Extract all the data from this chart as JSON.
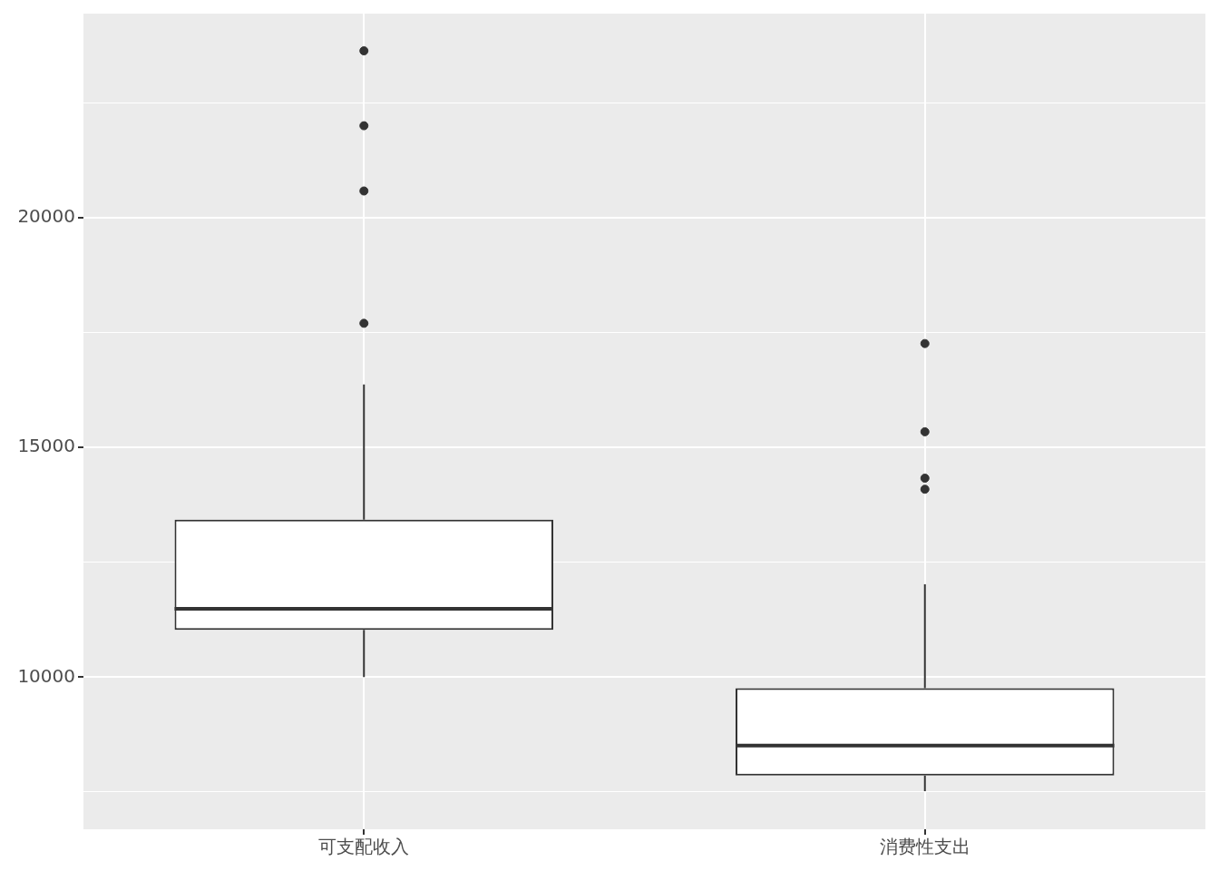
{
  "chart_data": {
    "type": "box",
    "categories": [
      "可支配收入",
      "消费性支出"
    ],
    "boxes": [
      {
        "low": 10000,
        "q1": 11030,
        "median": 11490,
        "q3": 13430,
        "high": 16370,
        "outliers": [
          23630,
          22000,
          20580,
          17700
        ]
      },
      {
        "low": 7520,
        "q1": 7860,
        "median": 8510,
        "q3": 9760,
        "high": 12020,
        "outliers": [
          17260,
          15340,
          14330,
          14090
        ]
      }
    ],
    "color": "#333333",
    "ylim": [
      6690,
      24440
    ],
    "yticks": [
      {
        "value": 7500,
        "label": null
      },
      10000,
      {
        "value": 12500,
        "label": null
      },
      15000,
      {
        "value": 17500,
        "label": null
      },
      20000,
      {
        "value": 22500,
        "label": null
      }
    ],
    "grid": true,
    "legend": false
  }
}
